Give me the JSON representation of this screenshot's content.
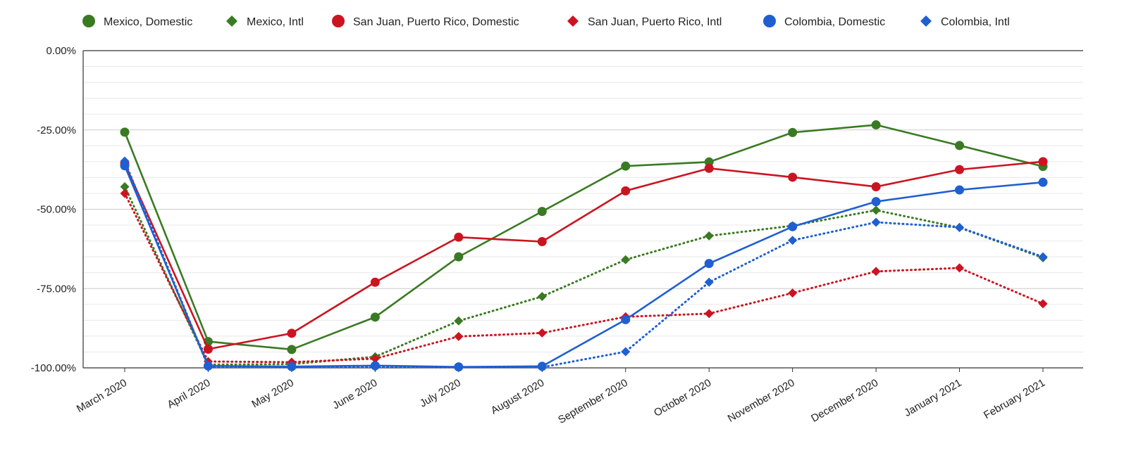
{
  "chart_data": {
    "type": "line",
    "title": "",
    "xlabel": "",
    "ylabel": "",
    "ylim": [
      -100,
      0
    ],
    "legend_position": "top",
    "grid": true,
    "categories": [
      "March 2020",
      "April 2020",
      "May 2020",
      "June 2020",
      "July 2020",
      "August 2020",
      "September 2020",
      "October 2020",
      "November 2020",
      "December 2020",
      "January 2021",
      "February 2021"
    ],
    "y_ticks": [
      {
        "value": 0,
        "label": "0.00%"
      },
      {
        "value": -25,
        "label": "-25.00%"
      },
      {
        "value": -50,
        "label": "-50.00%"
      },
      {
        "value": -75,
        "label": "-75.00%"
      },
      {
        "value": -100,
        "label": "-100.00%"
      }
    ],
    "series": [
      {
        "name": "Mexico, Domestic",
        "color": "#3a7a23",
        "marker": "circle",
        "dash": "solid",
        "values": [
          -25.7,
          -91.7,
          -94.2,
          -84.0,
          -65.0,
          -50.7,
          -36.4,
          -35.1,
          -25.8,
          -23.4,
          -29.9,
          -36.5
        ]
      },
      {
        "name": "Mexico, Intl",
        "color": "#3a7a23",
        "marker": "diamond",
        "dash": "dotted",
        "values": [
          -42.9,
          -99.0,
          -98.8,
          -96.5,
          -85.2,
          -77.5,
          -65.9,
          -58.4,
          -55.2,
          -50.3,
          -55.8,
          -65.3
        ]
      },
      {
        "name": "San Juan, Puerto Rico, Domestic",
        "color": "#cc1421",
        "marker": "circle",
        "dash": "solid",
        "values": [
          -35.6,
          -94.1,
          -89.1,
          -73.0,
          -58.8,
          -60.2,
          -44.2,
          -37.1,
          -39.9,
          -42.9,
          -37.5,
          -35.0
        ]
      },
      {
        "name": "San Juan, Puerto Rico, Intl",
        "color": "#cc1421",
        "marker": "diamond",
        "dash": "dotted",
        "values": [
          -45.0,
          -98.0,
          -98.2,
          -97.1,
          -90.1,
          -89.0,
          -83.9,
          -82.9,
          -76.4,
          -69.6,
          -68.5,
          -79.8
        ]
      },
      {
        "name": "Colombia, Domestic",
        "color": "#1f5fd1",
        "marker": "circle",
        "dash": "solid",
        "values": [
          -36.3,
          -99.4,
          -99.6,
          -99.3,
          -99.7,
          -99.5,
          -84.8,
          -67.1,
          -55.5,
          -47.6,
          -43.9,
          -41.5
        ]
      },
      {
        "name": "Colombia, Intl",
        "color": "#1f5fd1",
        "marker": "diamond",
        "dash": "dotted",
        "values": [
          -34.8,
          -99.7,
          -99.8,
          -99.7,
          -99.8,
          -99.8,
          -94.9,
          -73.0,
          -59.8,
          -54.1,
          -55.7,
          -65.0
        ]
      }
    ]
  }
}
